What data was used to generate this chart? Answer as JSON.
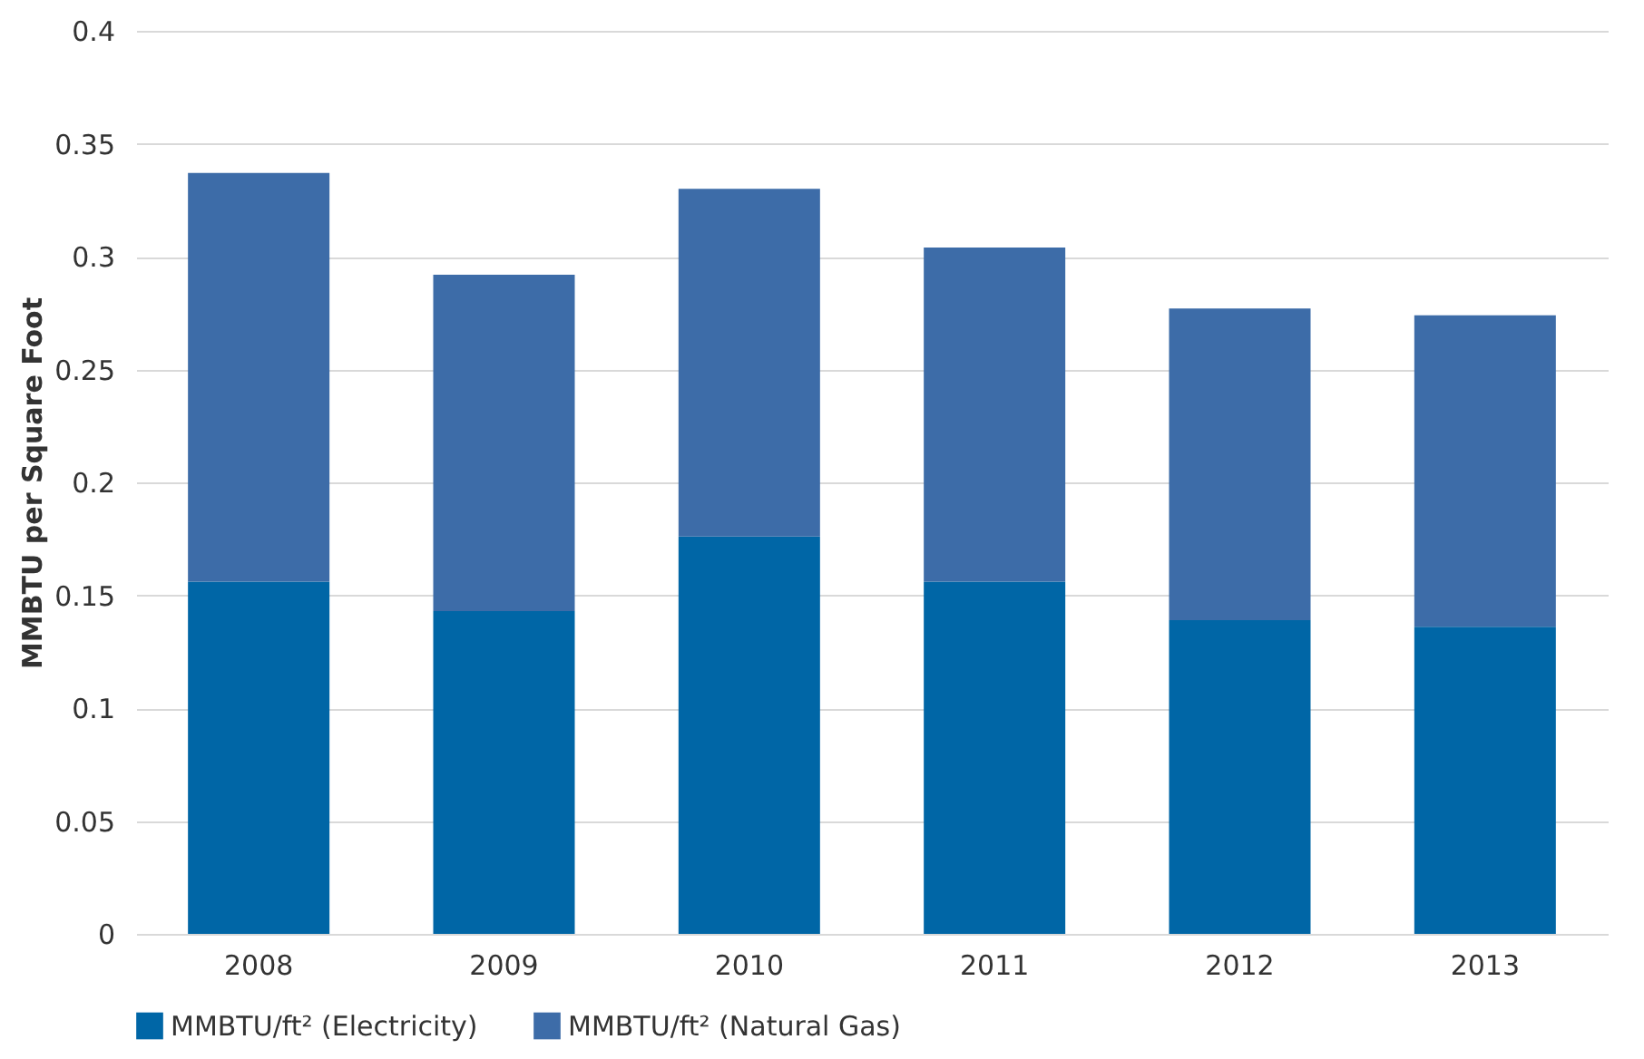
{
  "chart_data": {
    "type": "bar",
    "stacked": true,
    "ylabel": "MMBTU per Square Foot",
    "categories": [
      "2008",
      "2009",
      "2010",
      "2011",
      "2012",
      "2013"
    ],
    "series": [
      {
        "name": "MMBTU/ft² (Electricity)",
        "color": "#0066a6",
        "values": [
          0.156,
          0.143,
          0.176,
          0.156,
          0.139,
          0.136
        ]
      },
      {
        "name": "MMBTU/ft² (Natural Gas)",
        "color": "#3d6ca8",
        "values": [
          0.181,
          0.149,
          0.154,
          0.148,
          0.138,
          0.138
        ]
      }
    ],
    "ylim": [
      0,
      0.4
    ],
    "yticks": [
      0,
      0.05,
      0.1,
      0.15,
      0.2,
      0.25,
      0.3,
      0.35,
      0.4
    ],
    "grid": "y",
    "legend": "bottom"
  }
}
